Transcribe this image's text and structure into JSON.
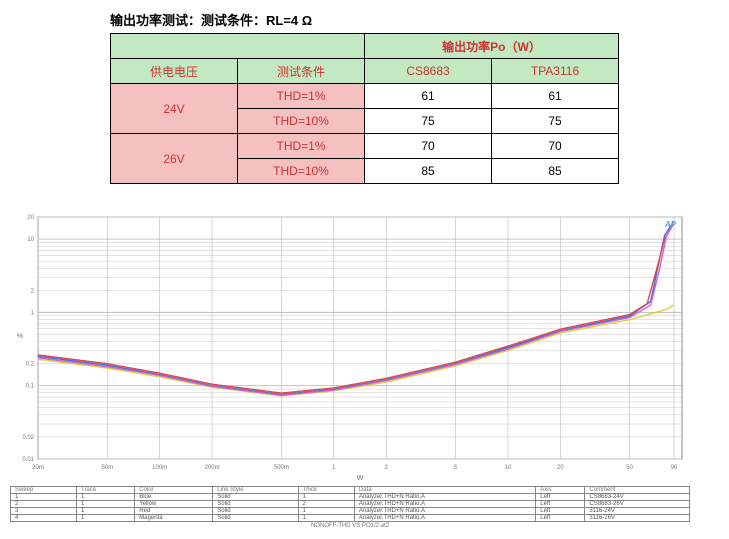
{
  "title": "输出功率测试：测试条件：RL=4 Ω",
  "table": {
    "top_header": "输出功率Po（W）",
    "col_headers": [
      "供电电压",
      "测试条件",
      "CS8683",
      "TPA3116"
    ],
    "rows": [
      {
        "voltage": "24V",
        "cond": "THD=1%",
        "v1": "61",
        "v2": "61"
      },
      {
        "voltage": "",
        "cond": "THD=10%",
        "v1": "75",
        "v2": "75"
      },
      {
        "voltage": "26V",
        "cond": "THD=1%",
        "v1": "70",
        "v2": "70"
      },
      {
        "voltage": "",
        "cond": "THD=10%",
        "v1": "85",
        "v2": "85"
      }
    ]
  },
  "chart": {
    "type": "line-loglog",
    "x_label": "W",
    "y_label": "%",
    "xlim_log": [
      -1.69897,
      2
    ],
    "ylim_log": [
      -2,
      1.30103
    ],
    "x_tick_labels": [
      "20m",
      "50m",
      "100m",
      "200m",
      "500m",
      "1",
      "2",
      "5",
      "10",
      "20",
      "50",
      "90"
    ],
    "x_tick_logx": [
      -1.69897,
      -1.30103,
      -1,
      -0.69897,
      -0.30103,
      0,
      0.30103,
      0.69897,
      1,
      1.30103,
      1.69897,
      1.95424
    ],
    "y_major_ticks_log": [
      -2,
      -1.69897,
      -1,
      -0.69897,
      0,
      0.30103,
      1,
      1.30103
    ],
    "y_tick_labels": [
      "0.01",
      "0.02",
      "0.1",
      "0.2",
      "1",
      "2",
      "10",
      "20"
    ],
    "grid_color": "#bbbbbb",
    "background_color": "#ffffff",
    "series": [
      {
        "name": "CS8683-24V",
        "color": "#3a6fd8",
        "points_logx": [
          -1.69897,
          -1.30103,
          -1,
          -0.69897,
          -0.30103,
          0,
          0.30103,
          0.69897,
          1,
          1.30103,
          1.69897,
          1.82,
          1.86,
          1.9,
          1.95
        ],
        "points_logy": [
          -0.6,
          -0.72,
          -0.85,
          -1.0,
          -1.12,
          -1.05,
          -0.92,
          -0.7,
          -0.48,
          -0.25,
          -0.05,
          0.15,
          0.6,
          1.05,
          1.23
        ]
      },
      {
        "name": "CS8683-26V",
        "color": "#d8d23a",
        "points_logx": [
          -1.69897,
          -1.30103,
          -1,
          -0.69897,
          -0.30103,
          0,
          0.30103,
          0.69897,
          1,
          1.30103,
          1.69897,
          1.82,
          1.88,
          1.92,
          1.95
        ],
        "points_logy": [
          -0.64,
          -0.76,
          -0.88,
          -1.02,
          -1.14,
          -1.07,
          -0.95,
          -0.73,
          -0.52,
          -0.28,
          -0.1,
          -0.02,
          0.02,
          0.05,
          0.1
        ]
      },
      {
        "name": "3116-24V",
        "color": "#e04848",
        "points_logx": [
          -1.69897,
          -1.30103,
          -1,
          -0.69897,
          -0.30103,
          0,
          0.30103,
          0.69897,
          1,
          1.30103,
          1.69897,
          1.8,
          1.85,
          1.9,
          1.95
        ],
        "points_logy": [
          -0.58,
          -0.7,
          -0.83,
          -0.98,
          -1.1,
          -1.03,
          -0.9,
          -0.68,
          -0.46,
          -0.23,
          -0.03,
          0.12,
          0.55,
          1.0,
          1.2
        ]
      },
      {
        "name": "3116-26V",
        "color": "#d45ed4",
        "points_logx": [
          -1.69897,
          -1.30103,
          -1,
          -0.69897,
          -0.30103,
          0,
          0.30103,
          0.69897,
          1,
          1.30103,
          1.69897,
          1.82,
          1.87,
          1.91,
          1.95
        ],
        "points_logy": [
          -0.62,
          -0.74,
          -0.86,
          -1.01,
          -1.13,
          -1.06,
          -0.93,
          -0.71,
          -0.5,
          -0.26,
          -0.07,
          0.1,
          0.58,
          1.03,
          1.22
        ]
      }
    ]
  },
  "legend_table": {
    "headers": [
      "Sweep",
      "Trace",
      "Color",
      "Line Style",
      "Thick",
      "Data",
      "Axis",
      "Comment"
    ],
    "rows": [
      [
        "1",
        "1",
        "Blue",
        "Solid",
        "1",
        "Analyzer.THD+N Ratio.A",
        "Left",
        "CS8683-24V"
      ],
      [
        "2",
        "1",
        "Yellow",
        "Solid",
        "2",
        "Analyzer.THD+N Ratio.A",
        "Left",
        "CS8683-26V"
      ],
      [
        "3",
        "1",
        "Red",
        "Solid",
        "1",
        "Analyzer.THD+N Ratio.A",
        "Left",
        "3116-24V"
      ],
      [
        "4",
        "1",
        "Magenta",
        "Solid",
        "1",
        "Analyzer.THD+N Ratio.A",
        "Left",
        "3116-26V"
      ]
    ]
  },
  "footer": "NONOFF-THD VS PO1/2.at2"
}
